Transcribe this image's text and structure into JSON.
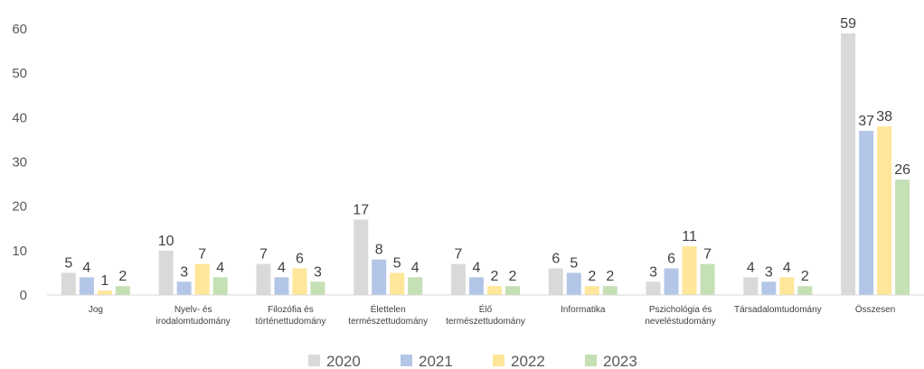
{
  "chart_data": {
    "type": "bar",
    "title": "",
    "xlabel": "",
    "ylabel": "",
    "ylim": [
      0,
      60
    ],
    "yticks": [
      0,
      10,
      20,
      30,
      40,
      50,
      60
    ],
    "grid": false,
    "legend_position": "bottom",
    "categories": [
      [
        "Jog"
      ],
      [
        "Nyelv- és",
        "irodalomtudomány"
      ],
      [
        "Filozófia és",
        "történettudomány"
      ],
      [
        "Élettelen",
        "természettudomány"
      ],
      [
        "Élő",
        "természettudomány"
      ],
      [
        "Informatika"
      ],
      [
        "Pszichológia és",
        "neveléstudomány"
      ],
      [
        "Társadalomtudomány"
      ],
      [
        "Összesen"
      ]
    ],
    "series": [
      {
        "name": "2020",
        "color": "#d9d9d9",
        "values": [
          5,
          10,
          7,
          17,
          7,
          6,
          3,
          4,
          59
        ]
      },
      {
        "name": "2021",
        "color": "#b4c6e7",
        "values": [
          4,
          3,
          4,
          8,
          4,
          5,
          6,
          3,
          37
        ]
      },
      {
        "name": "2022",
        "color": "#ffe699",
        "values": [
          1,
          7,
          6,
          5,
          2,
          2,
          11,
          4,
          38
        ]
      },
      {
        "name": "2023",
        "color": "#c5e0b4",
        "values": [
          2,
          4,
          3,
          4,
          2,
          2,
          7,
          2,
          26
        ]
      }
    ]
  }
}
